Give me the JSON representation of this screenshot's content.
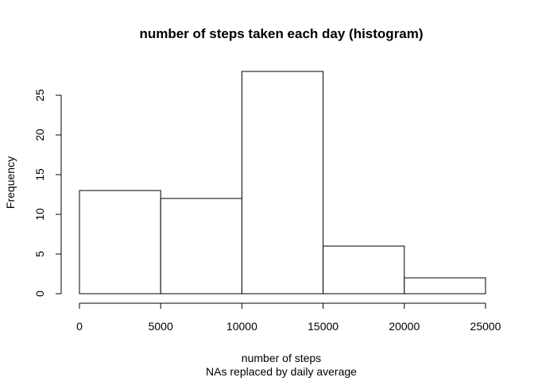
{
  "chart_data": {
    "type": "bar",
    "title": "number of steps taken each day (histogram)",
    "xlabel": "number of steps",
    "subtitle": "NAs replaced by daily average",
    "ylabel": "Frequency",
    "bins": [
      {
        "from": 0,
        "to": 5000,
        "count": 13
      },
      {
        "from": 5000,
        "to": 10000,
        "count": 12
      },
      {
        "from": 10000,
        "to": 15000,
        "count": 28
      },
      {
        "from": 15000,
        "to": 20000,
        "count": 6
      },
      {
        "from": 20000,
        "to": 25000,
        "count": 2
      }
    ],
    "xlim": [
      0,
      25000
    ],
    "ylim": [
      0,
      28
    ],
    "x_ticks": [
      0,
      5000,
      10000,
      15000,
      20000,
      25000
    ],
    "y_ticks": [
      0,
      5,
      10,
      15,
      20,
      25
    ],
    "grid": false,
    "bar_color": "#ffffff",
    "edge_color": "#000000"
  }
}
